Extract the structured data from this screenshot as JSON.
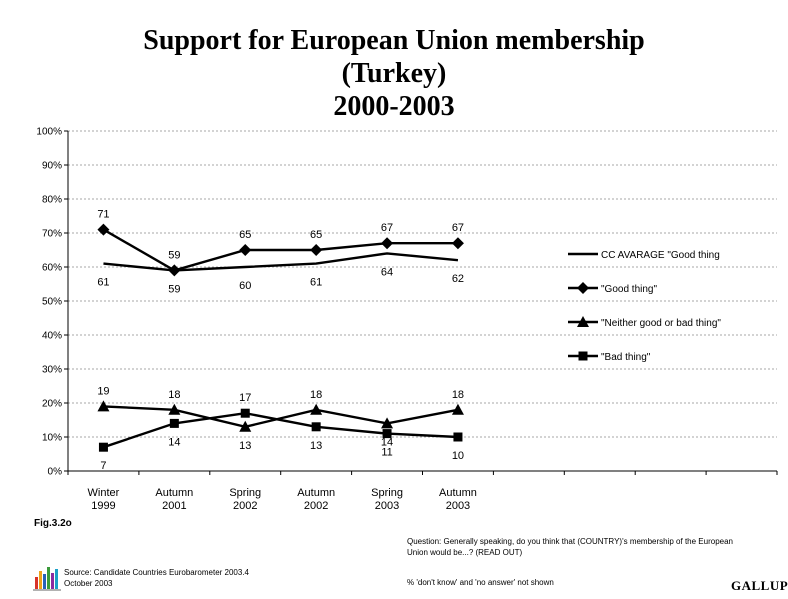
{
  "title_lines": [
    "Support for European Union membership",
    "(Turkey)",
    "2000-2003"
  ],
  "figure_label": "Fig.3.2o",
  "source": {
    "line1": "Source: Candidate Countries Eurobarometer 2003.4",
    "line2": "October 2003"
  },
  "question": {
    "line1": "Question: Generally speaking, do you think that (COUNTRY)'s membership of the European",
    "line2": "Union would be...? (READ OUT)"
  },
  "note": "% 'don't know' and 'no answer' not shown",
  "publisher": "GALLUP",
  "chart_data": {
    "type": "line",
    "categories": [
      "Winter 1999",
      "Autumn 2001",
      "Spring 2002",
      "Autumn 2002",
      "Spring 2003",
      "Autumn 2003"
    ],
    "ylim": [
      0,
      100
    ],
    "yticks": [
      "0%",
      "10%",
      "20%",
      "30%",
      "40%",
      "50%",
      "60%",
      "70%",
      "80%",
      "90%",
      "100%"
    ],
    "grid": true,
    "legend_position": "right",
    "series": [
      {
        "name": "CC AVARAGE \"Good thing",
        "marker": "none",
        "values": [
          61,
          59,
          60,
          61,
          64,
          62
        ]
      },
      {
        "name": "\"Good thing\"",
        "marker": "diamond",
        "values": [
          71,
          59,
          65,
          65,
          67,
          67
        ]
      },
      {
        "name": "\"Neither good or bad thing\"",
        "marker": "triangle",
        "values": [
          19,
          18,
          13,
          18,
          14,
          18
        ]
      },
      {
        "name": "\"Bad thing\"",
        "marker": "square",
        "values": [
          7,
          14,
          17,
          13,
          11,
          10
        ]
      }
    ]
  }
}
